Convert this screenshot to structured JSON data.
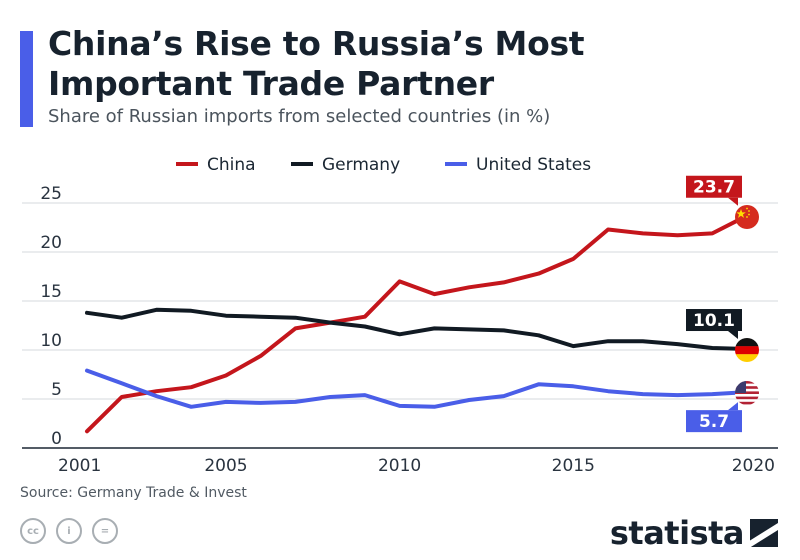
{
  "header": {
    "title": "China’s Rise to Russia’s Most Important Trade Partner",
    "subtitle": "Share of Russian imports from selected countries (in %)"
  },
  "chart_data": {
    "type": "line",
    "title": "China’s Rise to Russia’s Most Important Trade Partner",
    "subtitle": "Share of Russian imports from selected countries (in %)",
    "xlabel": "",
    "ylabel": "",
    "x": [
      2001,
      2002,
      2003,
      2004,
      2005,
      2006,
      2007,
      2008,
      2009,
      2010,
      2011,
      2012,
      2013,
      2014,
      2015,
      2016,
      2017,
      2018,
      2019,
      2020
    ],
    "xticks": [
      "2001",
      "2005",
      "2010",
      "2015",
      "2020"
    ],
    "yticks": [
      "0",
      "5",
      "10",
      "15",
      "20",
      "25"
    ],
    "ylim": [
      0,
      25
    ],
    "grid": true,
    "legend_position": "top-center",
    "series": [
      {
        "name": "China",
        "color": "#c4161c",
        "values": [
          1.7,
          5.2,
          5.8,
          6.2,
          7.4,
          9.4,
          12.2,
          12.8,
          13.4,
          17.0,
          15.7,
          16.4,
          16.9,
          17.8,
          19.3,
          22.3,
          21.9,
          21.7,
          21.9,
          23.7
        ],
        "end_label": "23.7",
        "end_label_color": "#c4161c",
        "end_label_position": "above"
      },
      {
        "name": "Germany",
        "color": "#111a23",
        "values": [
          13.8,
          13.3,
          14.1,
          14.0,
          13.5,
          13.4,
          13.3,
          12.8,
          12.4,
          11.6,
          12.2,
          12.1,
          12.0,
          11.5,
          10.4,
          10.9,
          10.9,
          10.6,
          10.2,
          10.1
        ],
        "end_label": "10.1",
        "end_label_color": "#111a23",
        "end_label_position": "above"
      },
      {
        "name": "United States",
        "color": "#4a5ee8",
        "values": [
          7.9,
          6.6,
          5.3,
          4.2,
          4.7,
          4.6,
          4.7,
          5.2,
          5.4,
          4.3,
          4.2,
          4.9,
          5.3,
          6.5,
          6.3,
          5.8,
          5.5,
          5.4,
          5.5,
          5.7
        ],
        "end_label": "5.7",
        "end_label_color": "#4a5ee8",
        "end_label_position": "below"
      }
    ]
  },
  "footer": {
    "source": "Source: Germany Trade & Invest",
    "brand": "statista",
    "license_icons": [
      "cc-icon",
      "person-icon",
      "equal-icon"
    ],
    "license_glyphs": [
      "cc",
      "i",
      "="
    ]
  }
}
